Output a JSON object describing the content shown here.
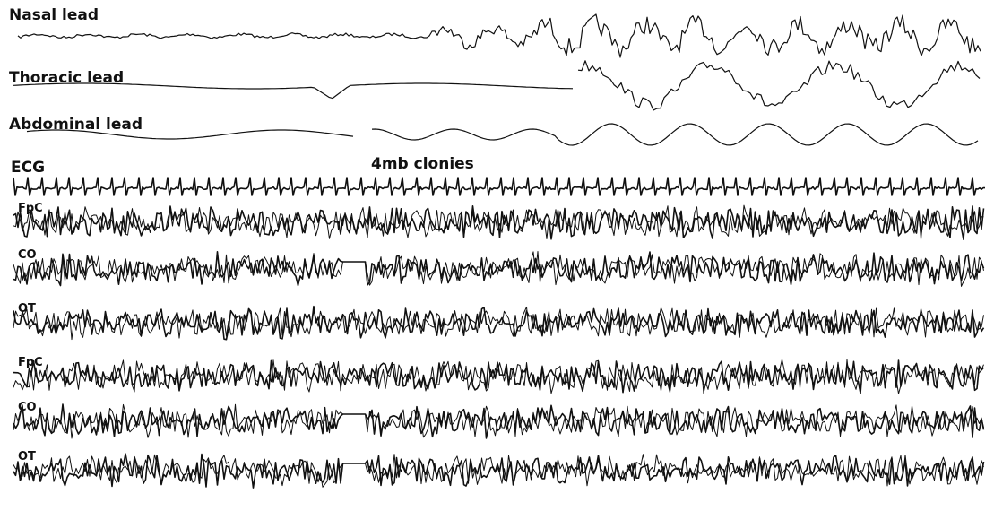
{
  "labels": {
    "nasal": "Nasal lead",
    "thoracic": "Thoracic lead",
    "abdominal": "Abdominal lead",
    "ecg": "ECG",
    "annotation": "4mb clonies"
  },
  "eeg_channels": [
    "FpC",
    "CO",
    "OT",
    "FpC",
    "CO",
    "OT"
  ]
}
